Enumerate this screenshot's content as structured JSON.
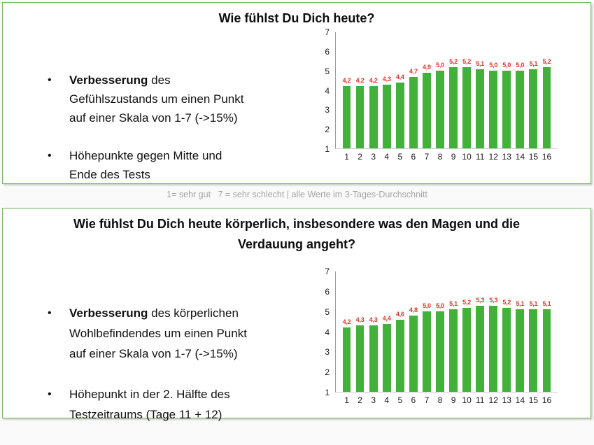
{
  "caption": "1= sehr gut   7 = sehr schlecht | alle Werte im 3-Tages-Durchschnitt",
  "panel1": {
    "title": "Wie fühlst Du Dich heute?",
    "bullets": [
      {
        "lead": "Verbesserung",
        "rest": " des\nGefühlszustands um einen Punkt\nauf einer Skala von 1-7 (->15%)"
      },
      {
        "lead": "",
        "rest": "Höhepunkte gegen Mitte und\nEnde des Tests"
      }
    ]
  },
  "panel2": {
    "title": "Wie fühlst Du Dich heute körperlich, insbesondere was den Magen und die\nVerdauung angeht?",
    "bullets": [
      {
        "lead": "Verbesserung",
        "rest": " des körperlichen\nWohlbefindendes um einen Punkt\nauf einer Skala von 1-7 (->15%)"
      },
      {
        "lead": "",
        "rest": "Höhepunkt in der 2. Hälfte des\nTestzeitraums (Tage 11 + 12)"
      }
    ]
  },
  "colors": {
    "panel_border": "#79b463",
    "bar_green": "#41b13a",
    "value_label_red": "#e0332a",
    "caption_gray": "#a3a3a3",
    "axis_line": "#9b9b9b",
    "baseline": "#cfcfcf"
  },
  "chart_data": [
    {
      "type": "bar",
      "title": "Wie fühlst Du Dich heute?",
      "categories": [
        "1",
        "2",
        "3",
        "4",
        "5",
        "6",
        "7",
        "8",
        "9",
        "10",
        "11",
        "12",
        "13",
        "14",
        "15",
        "16"
      ],
      "values": [
        4.2,
        4.2,
        4.2,
        4.3,
        4.4,
        4.7,
        4.9,
        5.0,
        5.2,
        5.2,
        5.1,
        5.0,
        5.0,
        5.0,
        5.1,
        5.2
      ],
      "value_labels": [
        "4,2",
        "4,2",
        "4,2",
        "4,3",
        "4,4",
        "4,7",
        "4,9",
        "5,0",
        "5,2",
        "5,2",
        "5,1",
        "5,0",
        "5,0",
        "5,0",
        "5,1",
        "5,2"
      ],
      "xlabel": "",
      "ylabel": "",
      "ylim": [
        1,
        7
      ],
      "yticks": [
        7,
        6,
        5,
        4,
        3,
        2,
        1
      ],
      "grid": false,
      "legend": "none",
      "bar_color": "#41b13a",
      "value_label_color": "#e0332a"
    },
    {
      "type": "bar",
      "title": "Wie fühlst Du Dich heute körperlich, insbesondere was den Magen und die Verdauung angeht?",
      "categories": [
        "1",
        "2",
        "3",
        "4",
        "5",
        "6",
        "7",
        "8",
        "9",
        "10",
        "11",
        "12",
        "13",
        "14",
        "15",
        "16"
      ],
      "values": [
        4.2,
        4.3,
        4.3,
        4.4,
        4.6,
        4.8,
        5.0,
        5.0,
        5.1,
        5.2,
        5.3,
        5.3,
        5.2,
        5.1,
        5.1,
        5.1
      ],
      "value_labels": [
        "4,2",
        "4,3",
        "4,3",
        "4,4",
        "4,6",
        "4,8",
        "5,0",
        "5,0",
        "5,1",
        "5,2",
        "5,3",
        "5,3",
        "5,2",
        "5,1",
        "5,1",
        "5,1"
      ],
      "xlabel": "",
      "ylabel": "",
      "ylim": [
        1,
        7
      ],
      "yticks": [
        7,
        6,
        5,
        4,
        3,
        2,
        1
      ],
      "grid": false,
      "legend": "none",
      "bar_color": "#41b13a",
      "value_label_color": "#e0332a"
    }
  ]
}
